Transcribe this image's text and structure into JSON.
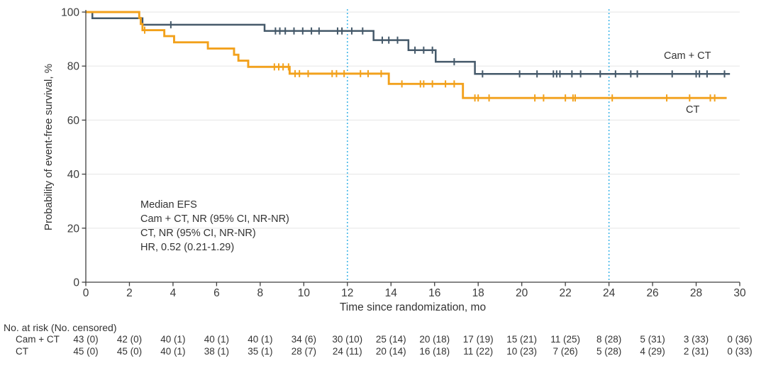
{
  "chart_data": {
    "type": "line",
    "variant": "kaplan_meier_step",
    "title": "",
    "xlabel": "Time since randomization, mo",
    "ylabel": "Probability of event-free survival, %",
    "xlim": [
      0,
      30
    ],
    "ylim": [
      0,
      100
    ],
    "xticks": [
      0,
      2,
      4,
      6,
      8,
      10,
      12,
      14,
      16,
      18,
      20,
      22,
      24,
      26,
      28,
      30
    ],
    "yticks": [
      0,
      20,
      40,
      60,
      80,
      100
    ],
    "grid": "horizontal",
    "reference_lines_x": [
      12,
      24
    ],
    "colors": {
      "grid": "#e9e9e9",
      "reference": "#4ab9e9",
      "axis": "#3e3e3e",
      "tick_text": "#3b3b3b"
    },
    "series": [
      {
        "id": "cam-ct",
        "name": "Cam + CT",
        "color": "#45596a",
        "points": [
          [
            0,
            100
          ],
          [
            0.3,
            97.7
          ],
          [
            2.6,
            95.3
          ],
          [
            8.2,
            93.0
          ],
          [
            13.2,
            89.6
          ],
          [
            14.8,
            85.9
          ],
          [
            16.05,
            81.6
          ],
          [
            17.85,
            77.1
          ],
          [
            29.55,
            77.1
          ]
        ],
        "censor_times": [
          3.9,
          8.7,
          8.9,
          9.15,
          9.55,
          9.95,
          10.35,
          10.7,
          11.55,
          11.75,
          12.2,
          12.7,
          13.6,
          13.9,
          14.3,
          15.1,
          15.5,
          15.9,
          16.9,
          18.2,
          19.9,
          20.7,
          21.45,
          21.6,
          21.75,
          22.3,
          22.7,
          23.6,
          24.3,
          25.0,
          25.3,
          26.9,
          28.0,
          28.15,
          28.5,
          29.3
        ]
      },
      {
        "id": "ct",
        "name": "CT",
        "color": "#f2a11c",
        "points": [
          [
            0,
            100
          ],
          [
            2.45,
            97.8
          ],
          [
            2.52,
            95.6
          ],
          [
            2.6,
            93.3
          ],
          [
            3.6,
            91.1
          ],
          [
            4.05,
            88.8
          ],
          [
            5.6,
            86.5
          ],
          [
            6.8,
            84.2
          ],
          [
            7.0,
            82.0
          ],
          [
            7.45,
            79.7
          ],
          [
            9.35,
            77.2
          ],
          [
            13.9,
            73.4
          ],
          [
            17.3,
            68.2
          ],
          [
            29.4,
            68.2
          ]
        ],
        "censor_times": [
          2.7,
          8.65,
          8.85,
          9.05,
          9.3,
          9.6,
          9.8,
          10.2,
          11.3,
          11.5,
          11.85,
          12.6,
          12.95,
          13.55,
          14.5,
          15.35,
          15.5,
          15.9,
          16.5,
          16.9,
          17.85,
          18.0,
          18.5,
          20.6,
          21.0,
          22.0,
          22.35,
          22.45,
          24.15,
          26.65,
          27.7,
          28.65,
          28.85
        ]
      }
    ],
    "annotation": {
      "lines": [
        "Median EFS",
        "Cam + CT, NR (95% CI, NR-NR)",
        "CT, NR (95% CI, NR-NR)",
        "HR, 0.52 (0.21-1.29)"
      ]
    },
    "risk_table": {
      "header": "No. at risk (No. censored)",
      "rows": [
        {
          "label": "Cam + CT",
          "values": [
            "43 (0)",
            "42 (0)",
            "40 (1)",
            "40 (1)",
            "40 (1)",
            "34 (6)",
            "30 (10)",
            "25 (14)",
            "20 (18)",
            "17 (19)",
            "15 (21)",
            "11 (25)",
            "8 (28)",
            "5 (31)",
            "3 (33)",
            "0 (36)"
          ]
        },
        {
          "label": "CT",
          "values": [
            "45 (0)",
            "45 (0)",
            "40 (1)",
            "38 (1)",
            "35 (1)",
            "28 (7)",
            "24 (11)",
            "20 (14)",
            "16 (18)",
            "11 (22)",
            "10 (23)",
            "7 (26)",
            "5 (28)",
            "4 (29)",
            "2 (31)",
            "0 (33)"
          ]
        }
      ]
    }
  }
}
